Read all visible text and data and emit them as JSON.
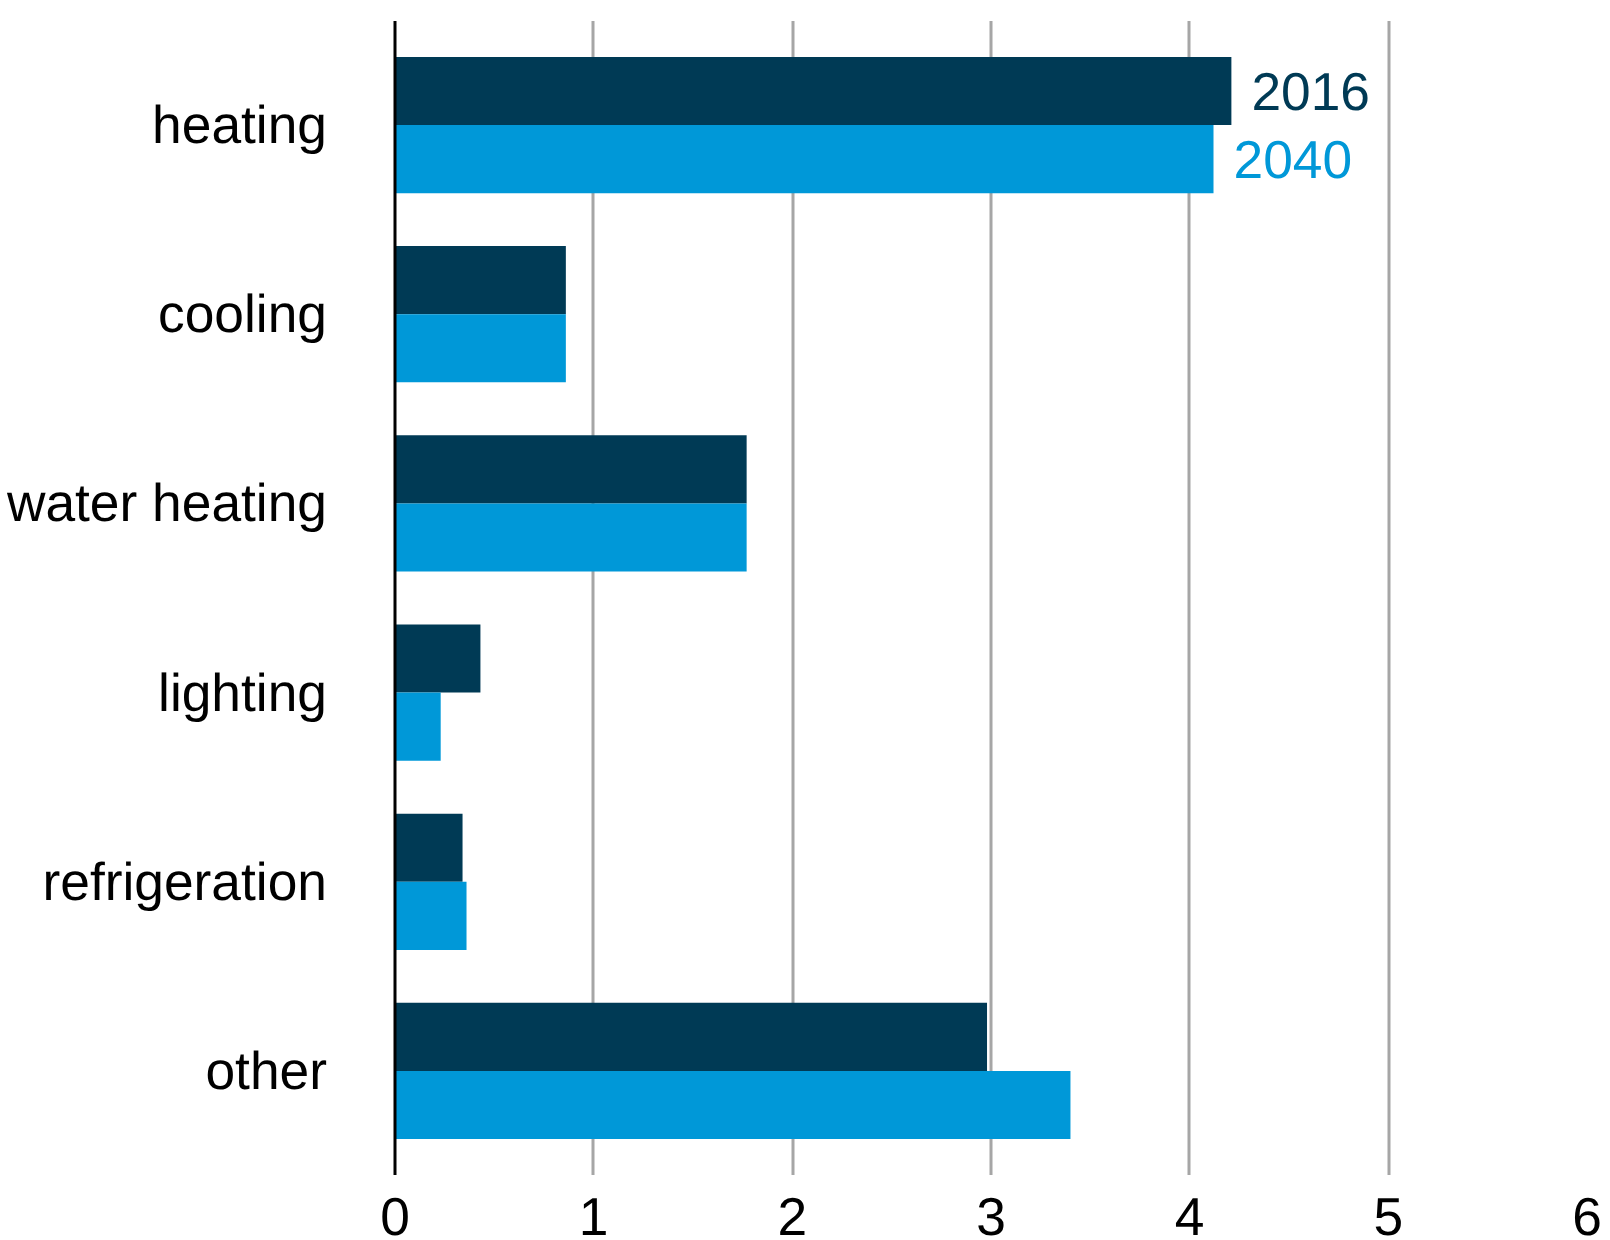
{
  "chart_data": {
    "type": "bar",
    "orientation": "horizontal",
    "categories": [
      "heating",
      "cooling",
      "water heating",
      "lighting",
      "refrigeration",
      "other"
    ],
    "series": [
      {
        "name": "2016",
        "color": "#003a55",
        "values": [
          4.21,
          0.86,
          1.77,
          0.43,
          0.34,
          2.98
        ]
      },
      {
        "name": "2040",
        "color": "#0098d8",
        "values": [
          4.12,
          0.86,
          1.77,
          0.23,
          0.36,
          3.4
        ]
      }
    ],
    "xlim": [
      0,
      6
    ],
    "xticks": [
      0,
      1,
      2,
      3,
      4,
      5,
      6
    ],
    "grid": "x",
    "legend": false
  }
}
